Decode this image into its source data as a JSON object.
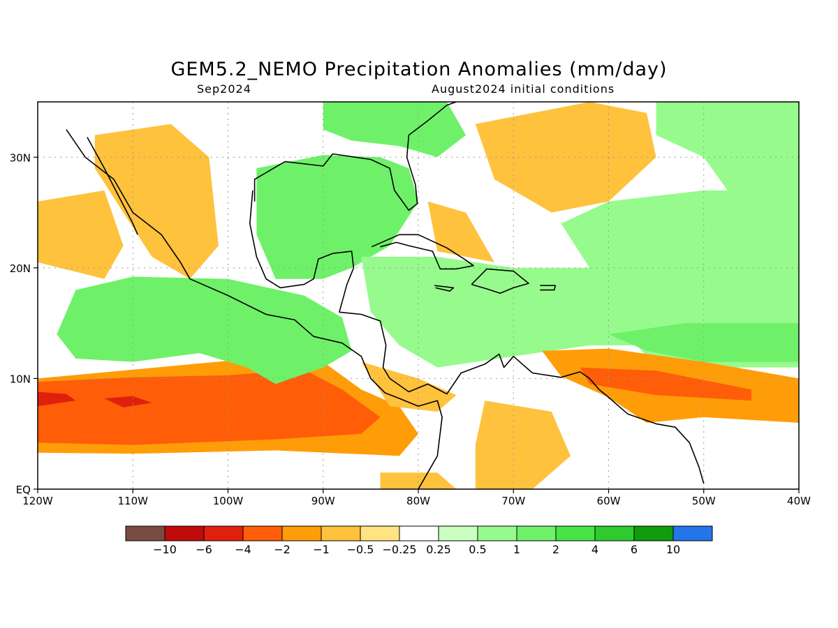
{
  "title": "GEM5.2_NEMO Precipitation Anomalies (mm/day)",
  "subtitle_left": "Sep2024",
  "subtitle_right": "August2024 initial conditions",
  "map": {
    "lon_range": [
      -120,
      -40
    ],
    "lat_range": [
      0,
      35
    ],
    "lon_ticks": [
      {
        "value": -120,
        "label": "120W"
      },
      {
        "value": -110,
        "label": "110W"
      },
      {
        "value": -100,
        "label": "100W"
      },
      {
        "value": -90,
        "label": "90W"
      },
      {
        "value": -80,
        "label": "80W"
      },
      {
        "value": -70,
        "label": "70W"
      },
      {
        "value": -60,
        "label": "60W"
      },
      {
        "value": -50,
        "label": "50W"
      },
      {
        "value": -40,
        "label": "40W"
      }
    ],
    "lat_ticks": [
      {
        "value": 0,
        "label": "EQ"
      },
      {
        "value": 10,
        "label": "10N"
      },
      {
        "value": 20,
        "label": "20N"
      },
      {
        "value": 30,
        "label": "30N"
      }
    ]
  },
  "colorbar": {
    "colors": [
      "#7a4b42",
      "#c10a0a",
      "#e0200c",
      "#ff5d08",
      "#ff9d08",
      "#ffc23d",
      "#ffe481",
      "#ffffff",
      "#cbffc0",
      "#96fb8c",
      "#6ef169",
      "#48e447",
      "#2fcb2e",
      "#0f9d0e",
      "#2376ea"
    ],
    "labels": [
      "−10",
      "−6",
      "−4",
      "−2",
      "−1",
      "−0.5",
      "−0.25",
      "0.25",
      "0.5",
      "1",
      "2",
      "4",
      "6",
      "10"
    ]
  },
  "regions": [
    {
      "name": "itcz-dry-band",
      "color": "#ff9d08",
      "lonlat": [
        [
          -120,
          10
        ],
        [
          -110,
          10.8
        ],
        [
          -100,
          11.6
        ],
        [
          -94,
          12.2
        ],
        [
          -90,
          11.5
        ],
        [
          -86,
          9
        ],
        [
          -82,
          7.5
        ],
        [
          -80,
          5
        ],
        [
          -82,
          3
        ],
        [
          -95,
          3.5
        ],
        [
          -110,
          3.2
        ],
        [
          -120,
          3.3
        ]
      ]
    },
    {
      "name": "itcz-dry-core",
      "color": "#ff5d08",
      "lonlat": [
        [
          -120,
          9.7
        ],
        [
          -110,
          10.1
        ],
        [
          -100,
          10.3
        ],
        [
          -92,
          10.8
        ],
        [
          -88,
          9
        ],
        [
          -84,
          6.5
        ],
        [
          -86,
          5
        ],
        [
          -95,
          4.5
        ],
        [
          -110,
          4
        ],
        [
          -120,
          4.2
        ]
      ]
    },
    {
      "name": "itcz-dry-center-1",
      "color": "#e0200c",
      "lonlat": [
        [
          -120,
          8.8
        ],
        [
          -117,
          8.6
        ],
        [
          -116,
          8
        ],
        [
          -120,
          7.5
        ]
      ]
    },
    {
      "name": "itcz-dry-center-2",
      "color": "#e0200c",
      "lonlat": [
        [
          -113,
          8.2
        ],
        [
          -110,
          8.4
        ],
        [
          -108,
          7.8
        ],
        [
          -111,
          7.4
        ]
      ]
    },
    {
      "name": "east-pac-wet",
      "color": "#6ef169",
      "lonlat": [
        [
          -116,
          18
        ],
        [
          -110,
          19.2
        ],
        [
          -100,
          19
        ],
        [
          -92,
          17.5
        ],
        [
          -88,
          15.5
        ],
        [
          -87,
          12.5
        ],
        [
          -90,
          11
        ],
        [
          -95,
          9.5
        ],
        [
          -98,
          11
        ],
        [
          -103,
          12.3
        ],
        [
          -110,
          11.5
        ],
        [
          -116,
          11.8
        ],
        [
          -118,
          14
        ]
      ]
    },
    {
      "name": "gulf-wet",
      "color": "#6ef169",
      "lonlat": [
        [
          -97,
          29
        ],
        [
          -90,
          30.2
        ],
        [
          -84,
          30
        ],
        [
          -81,
          29
        ],
        [
          -80,
          26
        ],
        [
          -83,
          22
        ],
        [
          -87,
          20
        ],
        [
          -90,
          19
        ],
        [
          -95,
          19
        ],
        [
          -97,
          23
        ]
      ]
    },
    {
      "name": "se-us-wet",
      "color": "#6ef169",
      "lonlat": [
        [
          -90,
          35
        ],
        [
          -77,
          35
        ],
        [
          -75,
          32
        ],
        [
          -78,
          30
        ],
        [
          -82,
          31
        ],
        [
          -87,
          31.5
        ],
        [
          -90,
          32.5
        ]
      ]
    },
    {
      "name": "caribbean-wet",
      "color": "#96fb8c",
      "lonlat": [
        [
          -86,
          21
        ],
        [
          -78,
          21
        ],
        [
          -70,
          20
        ],
        [
          -60,
          20
        ],
        [
          -56,
          15
        ],
        [
          -56,
          13
        ],
        [
          -62,
          13
        ],
        [
          -70,
          12
        ],
        [
          -78,
          11
        ],
        [
          -82,
          13
        ],
        [
          -85,
          16
        ]
      ]
    },
    {
      "name": "atlantic-wet",
      "color": "#96fb8c",
      "lonlat": [
        [
          -60,
          26
        ],
        [
          -50,
          27
        ],
        [
          -40,
          27
        ],
        [
          -40,
          11
        ],
        [
          -48,
          11
        ],
        [
          -56,
          12
        ],
        [
          -58,
          14
        ],
        [
          -62,
          20
        ],
        [
          -65,
          24
        ]
      ]
    },
    {
      "name": "atlantic-wet-core",
      "color": "#6ef169",
      "lonlat": [
        [
          -60,
          14
        ],
        [
          -52,
          15
        ],
        [
          -40,
          15
        ],
        [
          -40,
          11.5
        ],
        [
          -50,
          11.5
        ],
        [
          -56,
          12.5
        ]
      ]
    },
    {
      "name": "ne-atlantic-wet",
      "color": "#96fb8c",
      "lonlat": [
        [
          -55,
          35
        ],
        [
          -40,
          35
        ],
        [
          -40,
          22
        ],
        [
          -45,
          24
        ],
        [
          -50,
          30
        ],
        [
          -55,
          32
        ]
      ]
    },
    {
      "name": "nw-mexico-dry",
      "color": "#ffc23d",
      "lonlat": [
        [
          -114,
          32
        ],
        [
          -106,
          33
        ],
        [
          -102,
          30
        ],
        [
          -101,
          22
        ],
        [
          -104,
          19
        ],
        [
          -108,
          21
        ],
        [
          -111,
          25
        ],
        [
          -114,
          29
        ]
      ]
    },
    {
      "name": "pacific-dry",
      "color": "#ffc23d",
      "lonlat": [
        [
          -120,
          26
        ],
        [
          -113,
          27
        ],
        [
          -111,
          22
        ],
        [
          -113,
          19
        ],
        [
          -120,
          20.5
        ]
      ]
    },
    {
      "name": "w-atlantic-dry",
      "color": "#ffc23d",
      "lonlat": [
        [
          -74,
          33
        ],
        [
          -62,
          35
        ],
        [
          -56,
          34
        ],
        [
          -55,
          30
        ],
        [
          -60,
          26
        ],
        [
          -66,
          25
        ],
        [
          -72,
          28
        ]
      ]
    },
    {
      "name": "bahamas-dry",
      "color": "#ffc23d",
      "lonlat": [
        [
          -79,
          26
        ],
        [
          -75,
          25
        ],
        [
          -72,
          20.5
        ],
        [
          -78,
          21.5
        ]
      ]
    },
    {
      "name": "ne-sa-dry",
      "color": "#ff9d08",
      "lonlat": [
        [
          -67,
          12.5
        ],
        [
          -60,
          12.7
        ],
        [
          -50,
          11.5
        ],
        [
          -40,
          10
        ],
        [
          -40,
          6
        ],
        [
          -50,
          6.5
        ],
        [
          -56,
          6
        ],
        [
          -60,
          8.3
        ],
        [
          -65,
          10.2
        ]
      ]
    },
    {
      "name": "ne-sa-dry-core",
      "color": "#ff5d08",
      "lonlat": [
        [
          -63,
          11
        ],
        [
          -55,
          10.7
        ],
        [
          -45,
          9
        ],
        [
          -45,
          8
        ],
        [
          -55,
          8.5
        ],
        [
          -62,
          9.5
        ]
      ]
    },
    {
      "name": "panama-dry",
      "color": "#ffc23d",
      "lonlat": [
        [
          -86,
          11.5
        ],
        [
          -80,
          10
        ],
        [
          -76,
          8.5
        ],
        [
          -78,
          7
        ],
        [
          -83,
          7.5
        ]
      ]
    },
    {
      "name": "colombia-dry",
      "color": "#ffc23d",
      "lonlat": [
        [
          -73,
          8
        ],
        [
          -66,
          7
        ],
        [
          -64,
          3
        ],
        [
          -68,
          0
        ],
        [
          -74,
          0
        ],
        [
          -74,
          4
        ]
      ]
    },
    {
      "name": "amazon-dry",
      "color": "#ffc23d",
      "lonlat": [
        [
          -84,
          1.5
        ],
        [
          -78,
          1.5
        ],
        [
          -76,
          0
        ],
        [
          -84,
          0
        ]
      ]
    }
  ],
  "coastlines": [
    {
      "name": "central-america-pacific-coast",
      "lonlat": [
        [
          -117,
          32.5
        ],
        [
          -115,
          30
        ],
        [
          -112,
          28
        ],
        [
          -110,
          25
        ],
        [
          -107,
          23
        ],
        [
          -105,
          20.5
        ],
        [
          -104,
          19
        ],
        [
          -100,
          17.5
        ],
        [
          -96,
          15.8
        ],
        [
          -93,
          15.3
        ],
        [
          -91,
          13.8
        ],
        [
          -88,
          13.2
        ],
        [
          -86,
          12
        ],
        [
          -85,
          10
        ],
        [
          -83.5,
          8.7
        ],
        [
          -82,
          8.2
        ],
        [
          -80,
          7.5
        ],
        [
          -78,
          8
        ],
        [
          -77.5,
          6.5
        ],
        [
          -78,
          3
        ],
        [
          -79,
          1.5
        ],
        [
          -80,
          0
        ]
      ]
    },
    {
      "name": "baja-east-coast",
      "lonlat": [
        [
          -114.8,
          31.8
        ],
        [
          -113,
          29
        ],
        [
          -111.5,
          26.5
        ],
        [
          -110,
          24
        ],
        [
          -109.5,
          23
        ]
      ]
    },
    {
      "name": "gulf-coast",
      "lonlat": [
        [
          -97.4,
          27
        ],
        [
          -97.7,
          24
        ],
        [
          -97,
          21
        ],
        [
          -96,
          19
        ],
        [
          -94.5,
          18.2
        ],
        [
          -92,
          18.5
        ],
        [
          -91,
          19
        ],
        [
          -90.5,
          20.8
        ],
        [
          -89,
          21.3
        ],
        [
          -87,
          21.5
        ],
        [
          -86.8,
          20
        ],
        [
          -87.5,
          18.5
        ],
        [
          -88.3,
          16
        ],
        [
          -86,
          15.8
        ],
        [
          -84,
          15.2
        ],
        [
          -83.4,
          13
        ],
        [
          -83.7,
          11
        ],
        [
          -83,
          10
        ],
        [
          -81,
          8.8
        ],
        [
          -79,
          9.5
        ],
        [
          -77,
          8.6
        ],
        [
          -75.5,
          10.5
        ],
        [
          -73,
          11.3
        ],
        [
          -71.5,
          12.2
        ],
        [
          -71,
          11
        ],
        [
          -70,
          12
        ],
        [
          -68,
          10.5
        ],
        [
          -65,
          10.1
        ],
        [
          -63,
          10.6
        ],
        [
          -62,
          10
        ],
        [
          -61,
          9
        ],
        [
          -60,
          8.3
        ],
        [
          -58,
          6.8
        ],
        [
          -55,
          5.9
        ],
        [
          -53,
          5.6
        ],
        [
          -51.5,
          4.2
        ],
        [
          -50.5,
          2
        ],
        [
          -50,
          0.5
        ]
      ]
    },
    {
      "name": "us-gulf-atlantic-coast",
      "lonlat": [
        [
          -97.2,
          26
        ],
        [
          -97.2,
          28
        ],
        [
          -94,
          29.6
        ],
        [
          -90,
          29.2
        ],
        [
          -89,
          30.3
        ],
        [
          -85,
          29.8
        ],
        [
          -83,
          29
        ],
        [
          -82.5,
          27
        ],
        [
          -81,
          25.2
        ],
        [
          -80.1,
          25.8
        ],
        [
          -80.3,
          27.5
        ],
        [
          -81.2,
          30
        ],
        [
          -81,
          32
        ],
        [
          -79,
          33.3
        ],
        [
          -77,
          34.7
        ],
        [
          -76,
          35
        ]
      ]
    },
    {
      "name": "cuba",
      "lonlat": [
        [
          -84.9,
          21.9
        ],
        [
          -82,
          23
        ],
        [
          -80,
          23
        ],
        [
          -77,
          21.8
        ],
        [
          -75,
          20.7
        ],
        [
          -74.2,
          20.2
        ],
        [
          -76,
          19.9
        ],
        [
          -77.7,
          19.9
        ],
        [
          -78.5,
          21.5
        ],
        [
          -81,
          22
        ],
        [
          -82.3,
          22.3
        ],
        [
          -84,
          21.9
        ]
      ]
    },
    {
      "name": "hispaniola",
      "lonlat": [
        [
          -74.4,
          18.5
        ],
        [
          -72.8,
          19.9
        ],
        [
          -70,
          19.7
        ],
        [
          -68.4,
          18.6
        ],
        [
          -70,
          18.2
        ],
        [
          -71.4,
          17.7
        ],
        [
          -72.8,
          18.1
        ],
        [
          -74.4,
          18.5
        ]
      ]
    },
    {
      "name": "puerto-rico",
      "lonlat": [
        [
          -67.2,
          18.4
        ],
        [
          -65.6,
          18.4
        ],
        [
          -65.7,
          18
        ],
        [
          -67.2,
          18
        ]
      ]
    },
    {
      "name": "jamaica",
      "lonlat": [
        [
          -78.3,
          18.4
        ],
        [
          -76.3,
          18.2
        ],
        [
          -76.7,
          17.9
        ],
        [
          -78.2,
          18.2
        ]
      ]
    }
  ]
}
